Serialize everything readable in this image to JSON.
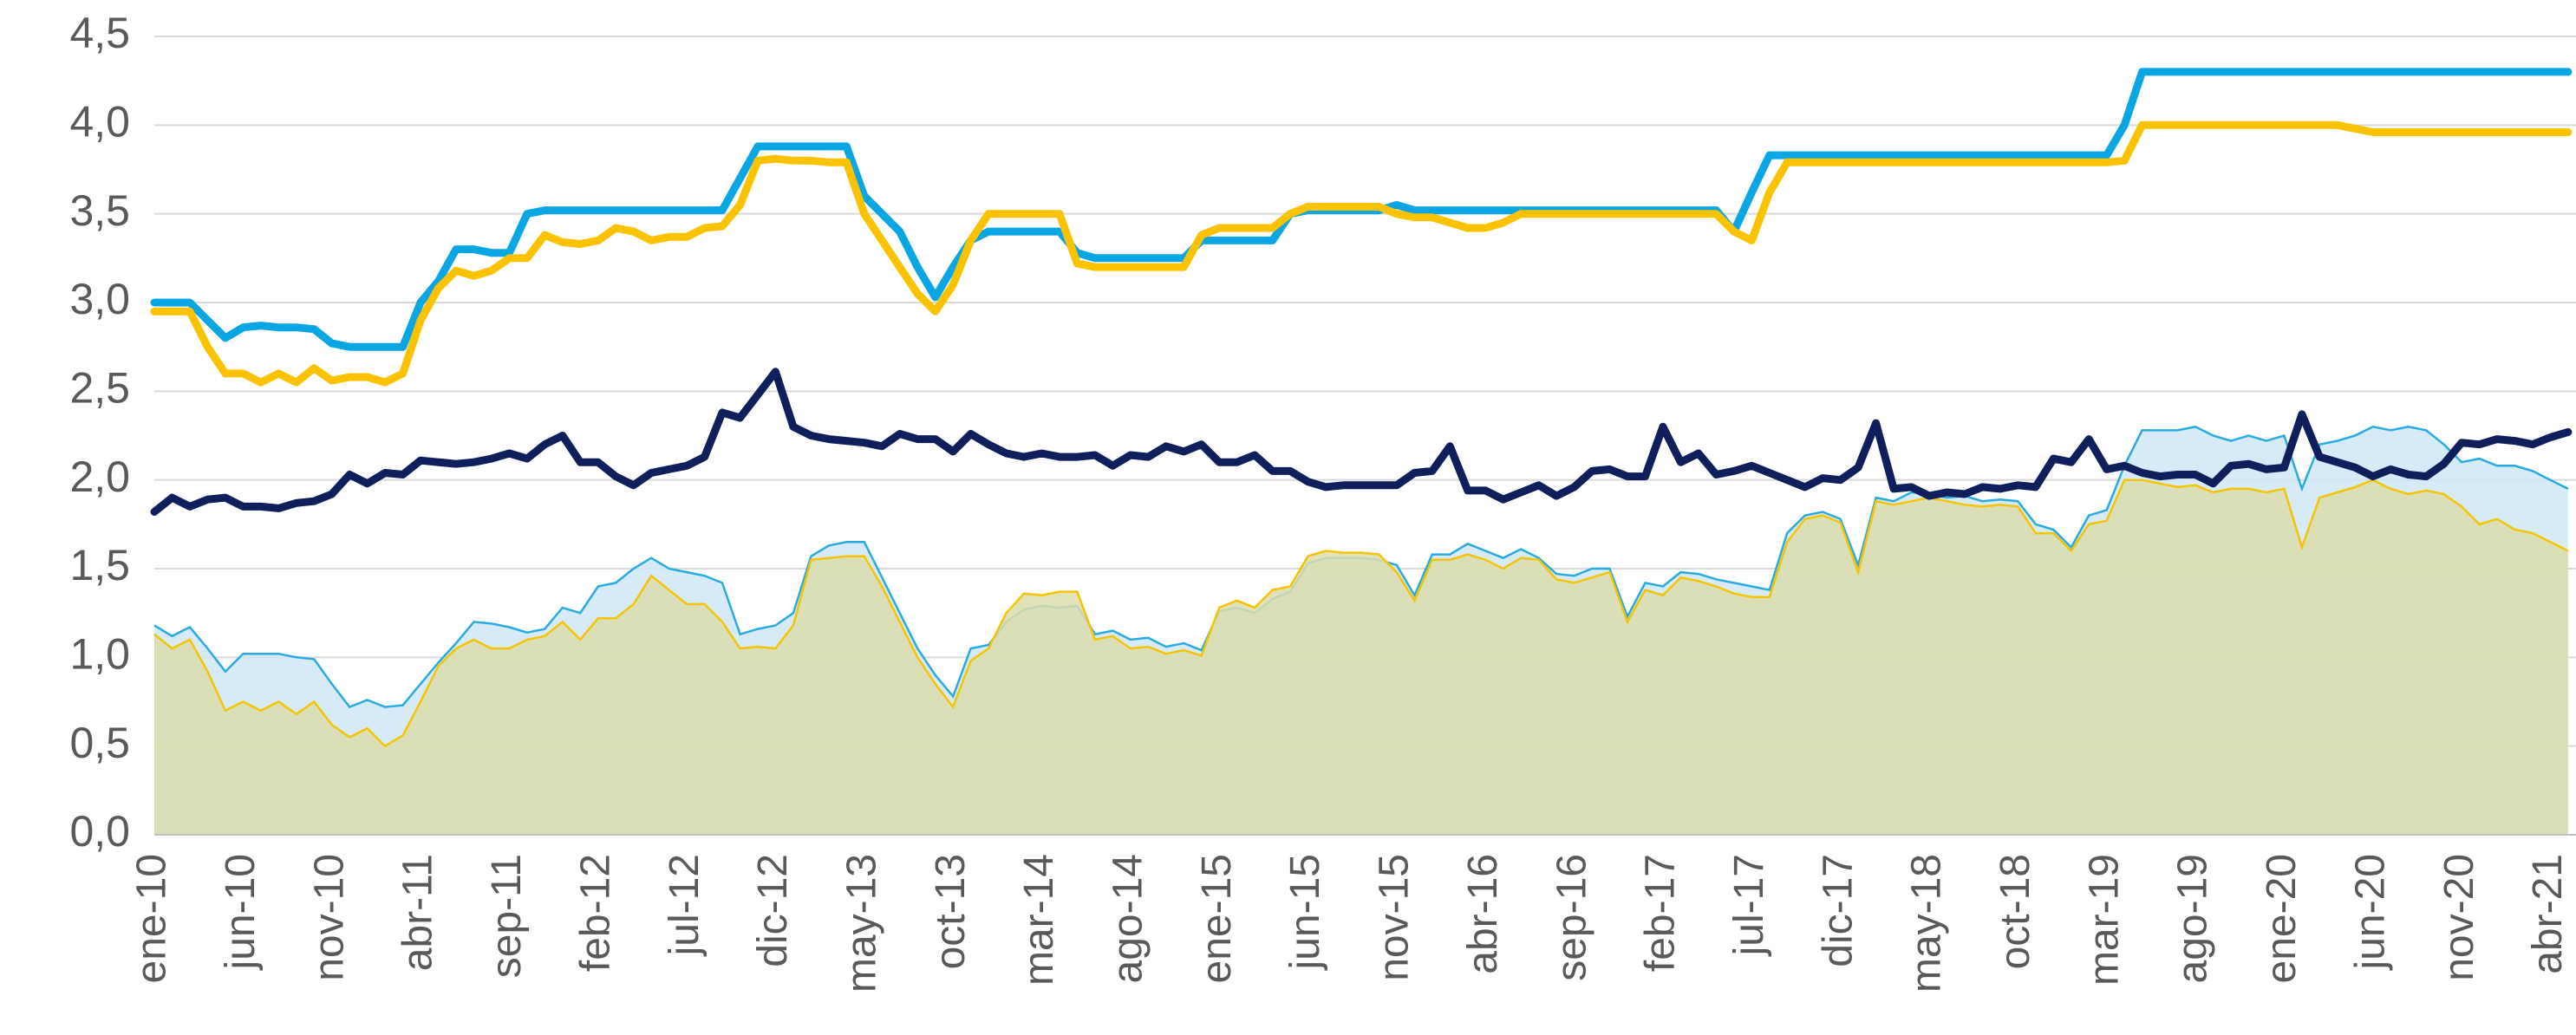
{
  "chart_data": {
    "type": "line",
    "categories": [
      "ene-10",
      null,
      null,
      null,
      null,
      "jun-10",
      null,
      null,
      null,
      null,
      "nov-10",
      null,
      null,
      null,
      null,
      "abr-11",
      null,
      null,
      null,
      null,
      "sep-11",
      null,
      null,
      null,
      null,
      "feb-12",
      null,
      null,
      null,
      null,
      "jul-12",
      null,
      null,
      null,
      null,
      "dic-12",
      null,
      null,
      null,
      null,
      "may-13",
      null,
      null,
      null,
      null,
      "oct-13",
      null,
      null,
      null,
      null,
      "mar-14",
      null,
      null,
      null,
      null,
      "ago-14",
      null,
      null,
      null,
      null,
      "ene-15",
      null,
      null,
      null,
      null,
      "jun-15",
      null,
      null,
      null,
      null,
      "nov-15",
      null,
      null,
      null,
      null,
      "abr-16",
      null,
      null,
      null,
      null,
      "sep-16",
      null,
      null,
      null,
      null,
      "feb-17",
      null,
      null,
      null,
      null,
      "jul-17",
      null,
      null,
      null,
      null,
      "dic-17",
      null,
      null,
      null,
      null,
      "may-18",
      null,
      null,
      null,
      null,
      "oct-18",
      null,
      null,
      null,
      null,
      "mar-19",
      null,
      null,
      null,
      null,
      "ago-19",
      null,
      null,
      null,
      null,
      "ene-20",
      null,
      null,
      null,
      null,
      "jun-20",
      null,
      null,
      null,
      null,
      "nov-20",
      null,
      null,
      null,
      null,
      "abr-21",
      null
    ],
    "ylim": [
      0,
      4.5
    ],
    "yticks": [
      {
        "value": 0,
        "label": "0,0"
      },
      {
        "value": 0.5,
        "label": "0,5"
      },
      {
        "value": 1,
        "label": "1,0"
      },
      {
        "value": 1.5,
        "label": "1,5"
      },
      {
        "value": 2,
        "label": "2,0"
      },
      {
        "value": 2.5,
        "label": "2,5"
      },
      {
        "value": 3,
        "label": "3,0"
      },
      {
        "value": 3.5,
        "label": "3,5"
      },
      {
        "value": 4,
        "label": "4,0"
      },
      {
        "value": 4.5,
        "label": "4,5"
      }
    ],
    "grid": true,
    "series": [
      {
        "style": "area",
        "color": "#29abe2",
        "fill": "#cfe8f6",
        "values": [
          1.18,
          1.12,
          1.17,
          1.05,
          0.92,
          1.02,
          1.02,
          1.02,
          1.0,
          0.99,
          0.85,
          0.72,
          0.76,
          0.72,
          0.73,
          0.85,
          0.97,
          1.08,
          1.2,
          1.19,
          1.17,
          1.14,
          1.16,
          1.28,
          1.25,
          1.4,
          1.42,
          1.5,
          1.56,
          1.5,
          1.48,
          1.46,
          1.42,
          1.13,
          1.16,
          1.18,
          1.25,
          1.57,
          1.63,
          1.65,
          1.65,
          1.45,
          1.25,
          1.05,
          0.9,
          0.78,
          1.05,
          1.07,
          1.2,
          1.27,
          1.29,
          1.28,
          1.29,
          1.13,
          1.15,
          1.1,
          1.11,
          1.06,
          1.08,
          1.04,
          1.26,
          1.28,
          1.25,
          1.33,
          1.37,
          1.53,
          1.56,
          1.56,
          1.56,
          1.55,
          1.52,
          1.35,
          1.58,
          1.58,
          1.64,
          1.6,
          1.56,
          1.61,
          1.56,
          1.47,
          1.46,
          1.5,
          1.5,
          1.23,
          1.42,
          1.4,
          1.48,
          1.47,
          1.44,
          1.42,
          1.4,
          1.38,
          1.7,
          1.8,
          1.82,
          1.78,
          1.52,
          1.9,
          1.88,
          1.93,
          1.92,
          1.9,
          1.91,
          1.88,
          1.89,
          1.88,
          1.75,
          1.72,
          1.62,
          1.8,
          1.83,
          2.08,
          2.28,
          2.28,
          2.28,
          2.3,
          2.25,
          2.22,
          2.25,
          2.22,
          2.25,
          1.95,
          2.2,
          2.22,
          2.25,
          2.3,
          2.28,
          2.3,
          2.28,
          2.2,
          2.1,
          2.12,
          2.08,
          2.08,
          2.05,
          2.0,
          1.95
        ]
      },
      {
        "style": "area",
        "color": "#f5c400",
        "fill": "#dcddab",
        "values": [
          1.13,
          1.05,
          1.1,
          0.92,
          0.7,
          0.75,
          0.7,
          0.75,
          0.68,
          0.75,
          0.62,
          0.55,
          0.6,
          0.5,
          0.56,
          0.75,
          0.95,
          1.05,
          1.1,
          1.05,
          1.05,
          1.1,
          1.12,
          1.2,
          1.1,
          1.22,
          1.22,
          1.3,
          1.46,
          1.38,
          1.3,
          1.3,
          1.2,
          1.05,
          1.06,
          1.05,
          1.18,
          1.55,
          1.56,
          1.57,
          1.57,
          1.4,
          1.2,
          1.0,
          0.85,
          0.72,
          0.98,
          1.05,
          1.25,
          1.36,
          1.35,
          1.37,
          1.37,
          1.1,
          1.12,
          1.05,
          1.06,
          1.02,
          1.04,
          1.01,
          1.28,
          1.32,
          1.28,
          1.38,
          1.4,
          1.57,
          1.6,
          1.59,
          1.59,
          1.58,
          1.48,
          1.32,
          1.55,
          1.55,
          1.58,
          1.55,
          1.5,
          1.56,
          1.55,
          1.44,
          1.42,
          1.45,
          1.48,
          1.2,
          1.38,
          1.35,
          1.45,
          1.43,
          1.4,
          1.36,
          1.34,
          1.34,
          1.65,
          1.78,
          1.8,
          1.76,
          1.48,
          1.88,
          1.86,
          1.88,
          1.9,
          1.88,
          1.86,
          1.85,
          1.86,
          1.85,
          1.7,
          1.7,
          1.6,
          1.75,
          1.77,
          2.0,
          2.0,
          1.98,
          1.96,
          1.97,
          1.93,
          1.95,
          1.95,
          1.93,
          1.95,
          1.62,
          1.9,
          1.93,
          1.96,
          2.0,
          1.95,
          1.92,
          1.94,
          1.92,
          1.85,
          1.75,
          1.78,
          1.72,
          1.7,
          1.65,
          1.6
        ]
      },
      {
        "style": "line",
        "color": "#0aa6e3",
        "values": [
          3.0,
          3.0,
          3.0,
          2.9,
          2.8,
          2.86,
          2.87,
          2.86,
          2.86,
          2.85,
          2.77,
          2.75,
          2.75,
          2.75,
          2.75,
          3.0,
          3.12,
          3.3,
          3.3,
          3.28,
          3.28,
          3.5,
          3.52,
          3.52,
          3.52,
          3.52,
          3.52,
          3.52,
          3.52,
          3.52,
          3.52,
          3.52,
          3.52,
          3.7,
          3.88,
          3.88,
          3.88,
          3.88,
          3.88,
          3.88,
          3.6,
          3.5,
          3.4,
          3.2,
          3.03,
          3.2,
          3.35,
          3.4,
          3.4,
          3.4,
          3.4,
          3.4,
          3.28,
          3.25,
          3.25,
          3.25,
          3.25,
          3.25,
          3.25,
          3.35,
          3.35,
          3.35,
          3.35,
          3.35,
          3.5,
          3.52,
          3.52,
          3.52,
          3.52,
          3.52,
          3.55,
          3.52,
          3.52,
          3.52,
          3.52,
          3.52,
          3.52,
          3.52,
          3.52,
          3.52,
          3.52,
          3.52,
          3.52,
          3.52,
          3.52,
          3.52,
          3.52,
          3.52,
          3.52,
          3.4,
          3.62,
          3.83,
          3.83,
          3.83,
          3.83,
          3.83,
          3.83,
          3.83,
          3.83,
          3.83,
          3.83,
          3.83,
          3.83,
          3.83,
          3.83,
          3.83,
          3.83,
          3.83,
          3.83,
          3.83,
          3.83,
          4.0,
          4.3,
          4.3,
          4.3,
          4.3,
          4.3,
          4.3,
          4.3,
          4.3,
          4.3,
          4.3,
          4.3,
          4.3,
          4.3,
          4.3,
          4.3,
          4.3,
          4.3,
          4.3,
          4.3,
          4.3,
          4.3,
          4.3,
          4.3,
          4.3,
          4.3
        ]
      },
      {
        "style": "line",
        "color": "#fbc200",
        "values": [
          2.95,
          2.95,
          2.95,
          2.75,
          2.6,
          2.6,
          2.55,
          2.6,
          2.55,
          2.63,
          2.56,
          2.58,
          2.58,
          2.55,
          2.6,
          2.9,
          3.08,
          3.18,
          3.15,
          3.18,
          3.25,
          3.25,
          3.38,
          3.34,
          3.33,
          3.35,
          3.42,
          3.4,
          3.35,
          3.37,
          3.37,
          3.42,
          3.43,
          3.55,
          3.8,
          3.81,
          3.8,
          3.8,
          3.79,
          3.79,
          3.5,
          3.35,
          3.2,
          3.05,
          2.95,
          3.1,
          3.35,
          3.5,
          3.5,
          3.5,
          3.5,
          3.5,
          3.22,
          3.2,
          3.2,
          3.2,
          3.2,
          3.2,
          3.2,
          3.38,
          3.42,
          3.42,
          3.42,
          3.42,
          3.5,
          3.54,
          3.54,
          3.54,
          3.54,
          3.54,
          3.5,
          3.48,
          3.48,
          3.45,
          3.42,
          3.42,
          3.45,
          3.5,
          3.5,
          3.5,
          3.5,
          3.5,
          3.5,
          3.5,
          3.5,
          3.5,
          3.5,
          3.5,
          3.5,
          3.4,
          3.35,
          3.62,
          3.79,
          3.79,
          3.79,
          3.79,
          3.79,
          3.79,
          3.79,
          3.79,
          3.79,
          3.79,
          3.79,
          3.79,
          3.79,
          3.79,
          3.79,
          3.79,
          3.79,
          3.79,
          3.79,
          3.8,
          4.0,
          4.0,
          4.0,
          4.0,
          4.0,
          4.0,
          4.0,
          4.0,
          4.0,
          4.0,
          4.0,
          4.0,
          3.98,
          3.96,
          3.96,
          3.96,
          3.96,
          3.96,
          3.96,
          3.96,
          3.96,
          3.96,
          3.96,
          3.96,
          3.96
        ]
      },
      {
        "style": "line",
        "color": "#0f1f5c",
        "values": [
          1.82,
          1.9,
          1.85,
          1.89,
          1.9,
          1.85,
          1.85,
          1.84,
          1.87,
          1.88,
          1.92,
          2.03,
          1.98,
          2.04,
          2.03,
          2.11,
          2.1,
          2.09,
          2.1,
          2.12,
          2.15,
          2.12,
          2.2,
          2.25,
          2.1,
          2.1,
          2.02,
          1.97,
          2.04,
          2.06,
          2.08,
          2.13,
          2.38,
          2.35,
          2.48,
          2.61,
          2.3,
          2.25,
          2.23,
          2.22,
          2.21,
          2.19,
          2.26,
          2.23,
          2.23,
          2.16,
          2.26,
          2.2,
          2.15,
          2.13,
          2.15,
          2.13,
          2.13,
          2.14,
          2.08,
          2.14,
          2.13,
          2.19,
          2.16,
          2.2,
          2.1,
          2.1,
          2.14,
          2.05,
          2.05,
          1.99,
          1.96,
          1.97,
          1.97,
          1.97,
          1.97,
          2.04,
          2.05,
          2.19,
          1.94,
          1.94,
          1.89,
          1.93,
          1.97,
          1.91,
          1.96,
          2.05,
          2.06,
          2.02,
          2.02,
          2.3,
          2.1,
          2.15,
          2.03,
          2.05,
          2.08,
          2.04,
          2.0,
          1.96,
          2.01,
          2.0,
          2.07,
          2.32,
          1.95,
          1.96,
          1.91,
          1.93,
          1.92,
          1.96,
          1.95,
          1.97,
          1.96,
          2.12,
          2.1,
          2.23,
          2.06,
          2.08,
          2.04,
          2.02,
          2.03,
          2.03,
          1.98,
          2.08,
          2.09,
          2.06,
          2.07,
          2.37,
          2.13,
          2.1,
          2.07,
          2.02,
          2.06,
          2.03,
          2.02,
          2.09,
          2.21,
          2.2,
          2.23,
          2.22,
          2.2,
          2.24,
          2.27
        ]
      }
    ]
  }
}
